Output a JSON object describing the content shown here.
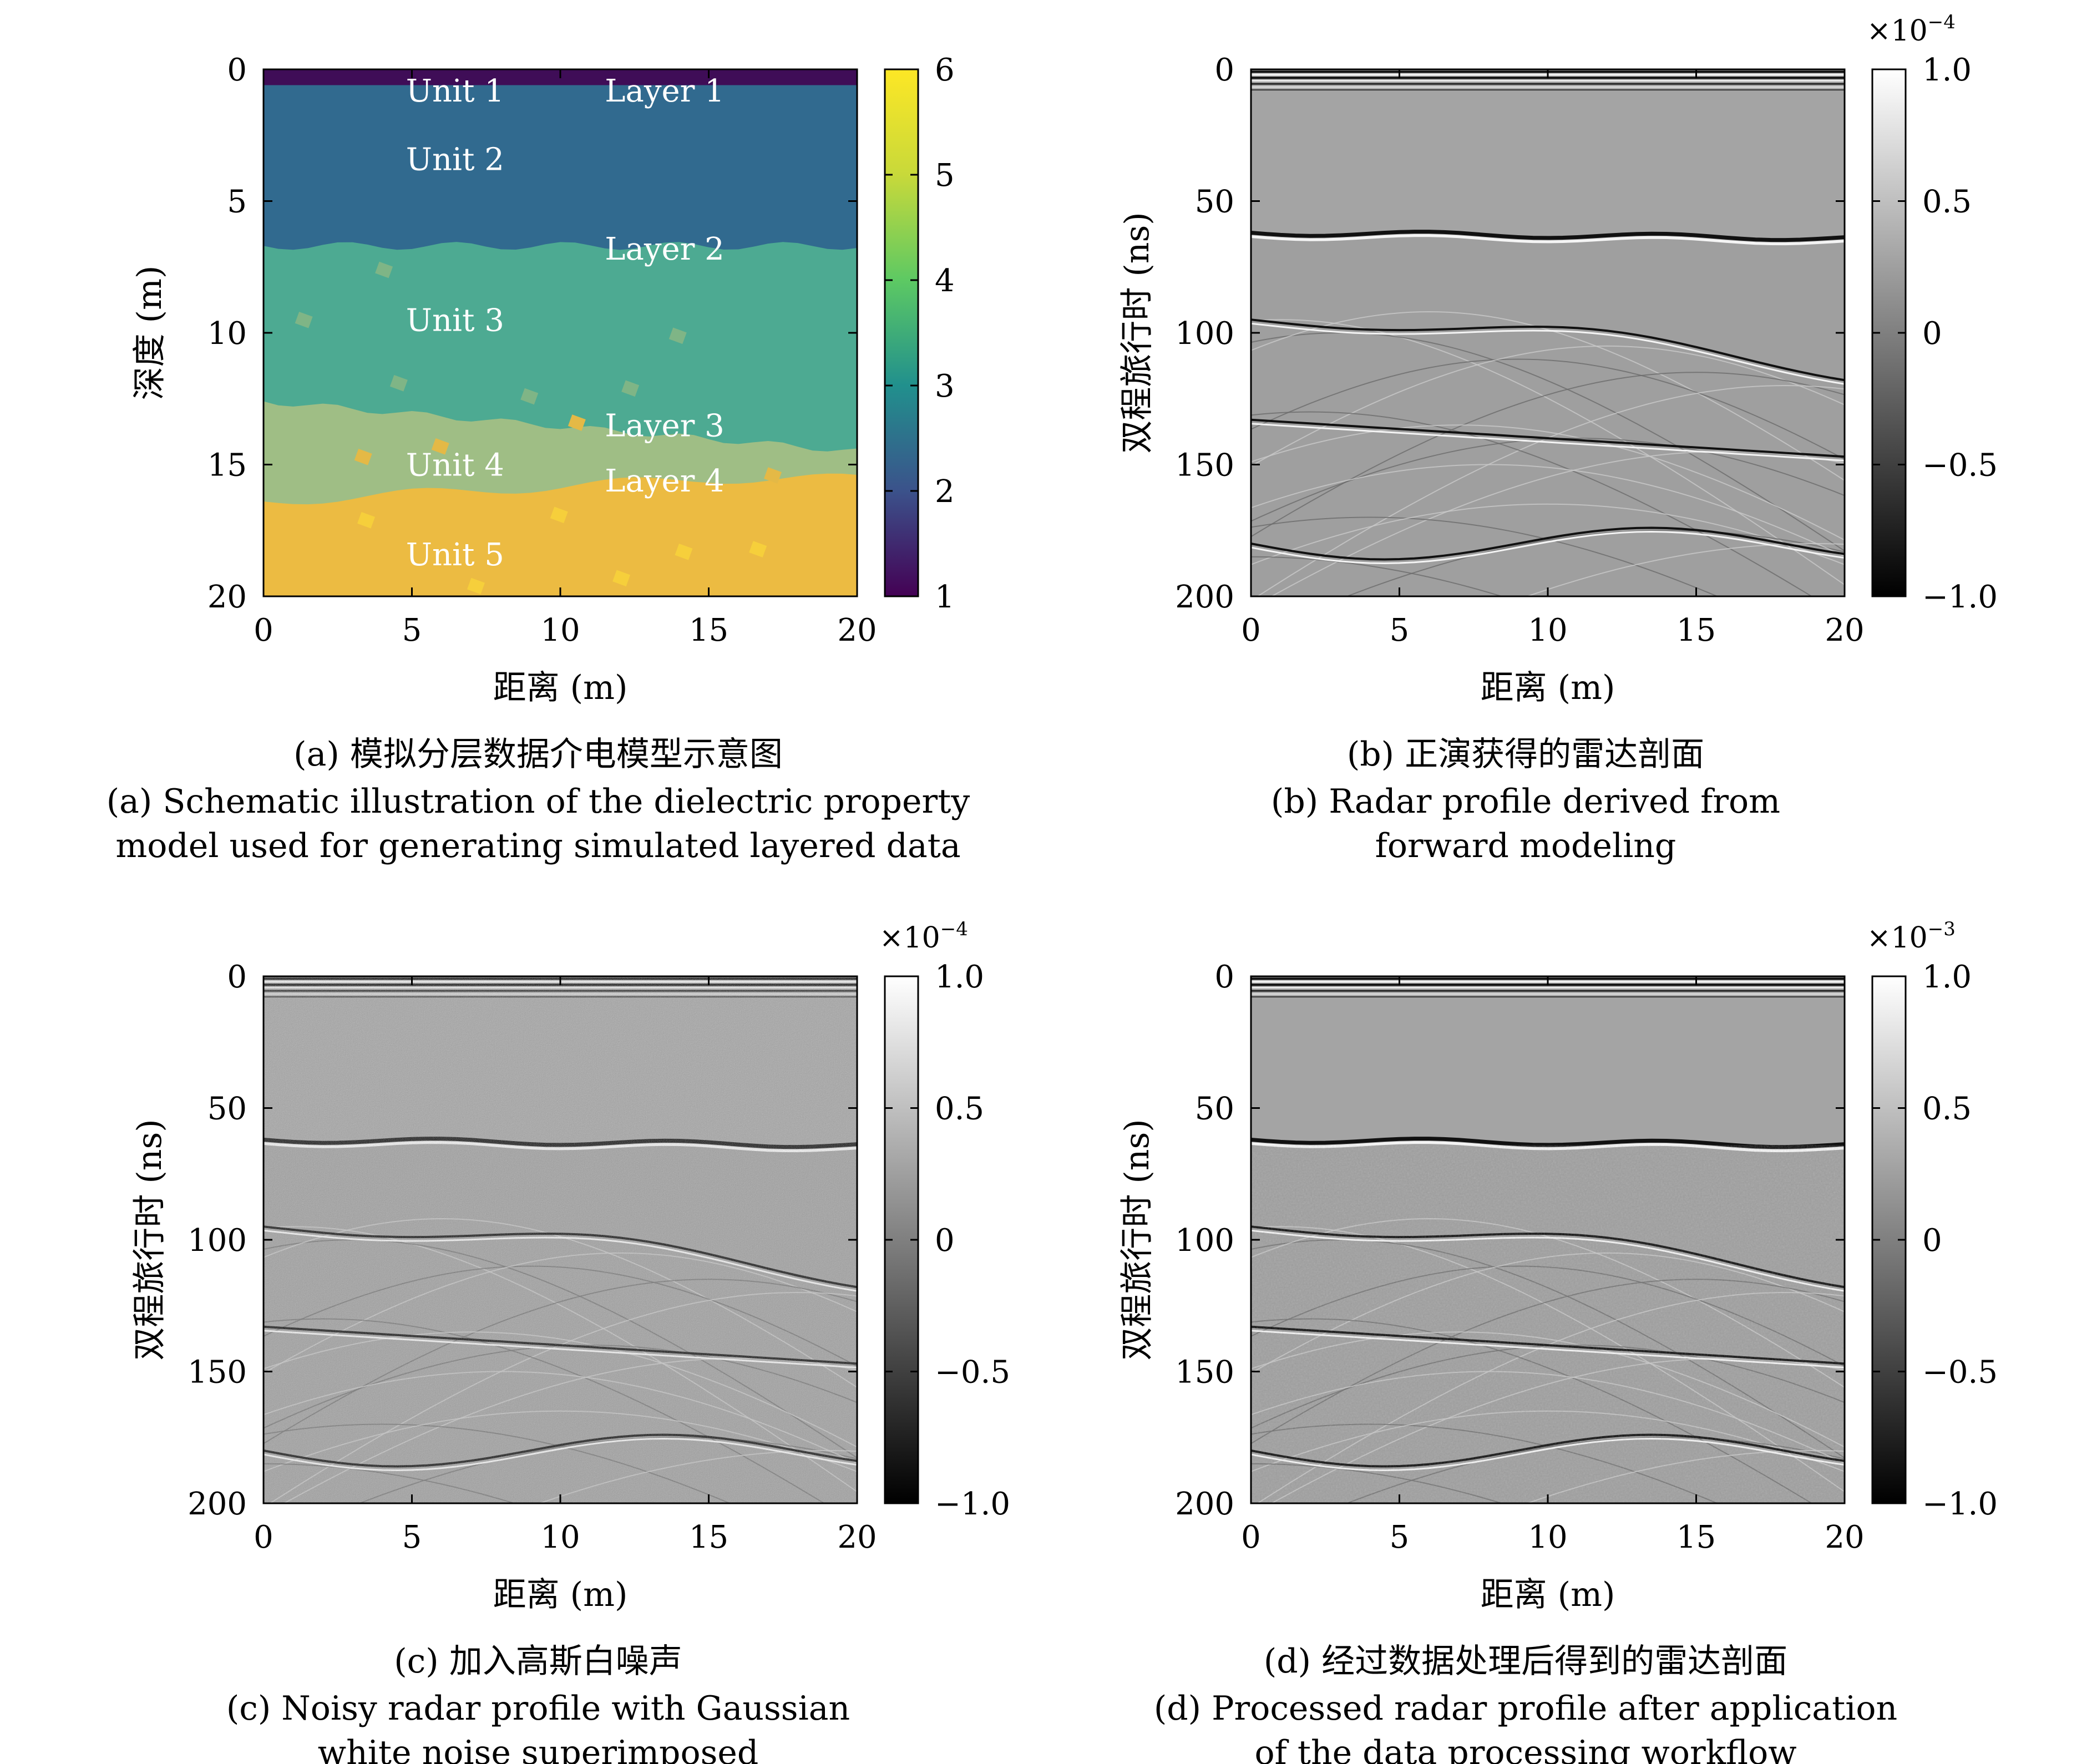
{
  "panels": [
    {
      "id": "a",
      "caption_cn": "(a) 模拟分层数据介电模型示意图",
      "caption_en": [
        "(a) Schematic illustration of the dielectric property",
        "model used for generating simulated layered data"
      ],
      "xlabel": "距离 (m)",
      "ylabel": "深度 (m)",
      "colorbar": {
        "ticks": [
          "1",
          "2",
          "3",
          "4",
          "5",
          "6"
        ],
        "scale": ""
      },
      "labels": [
        "Unit 1",
        "Layer 1",
        "Unit 2",
        "Layer 2",
        "Unit 3",
        "Layer 3",
        "Unit 4",
        "Layer 4",
        "Unit 5"
      ]
    },
    {
      "id": "b",
      "caption_cn": "(b) 正演获得的雷达剖面",
      "caption_en": [
        "(b) Radar profile derived from",
        "forward modeling"
      ],
      "xlabel": "距离 (m)",
      "ylabel": "双程旅行时 (ns)",
      "colorbar": {
        "ticks": [
          "1.0",
          "0.5",
          "0",
          "−0.5",
          "−1.0"
        ],
        "scale_base": "×10",
        "scale_exp": "−4"
      }
    },
    {
      "id": "c",
      "caption_cn": "(c) 加入高斯白噪声",
      "caption_en": [
        "(c) Noisy radar profile with Gaussian",
        "white noise superimposed"
      ],
      "xlabel": "距离 (m)",
      "ylabel": "双程旅行时 (ns)",
      "colorbar": {
        "ticks": [
          "1.0",
          "0.5",
          "0",
          "−0.5",
          "−1.0"
        ],
        "scale_base": "×10",
        "scale_exp": "−4"
      }
    },
    {
      "id": "d",
      "caption_cn": "(d) 经过数据处理后得到的雷达剖面",
      "caption_en": [
        "(d) Processed radar profile after application",
        "of the data processing workflow"
      ],
      "xlabel": "距离 (m)",
      "ylabel": "双程旅行时 (ns)",
      "colorbar": {
        "ticks": [
          "1.0",
          "0.5",
          "0",
          "−0.5",
          "−1.0"
        ],
        "scale_base": "×10",
        "scale_exp": "−3"
      }
    }
  ],
  "chart_data": [
    {
      "type": "heatmap",
      "x_ticks": [
        "0",
        "5",
        "10",
        "15",
        "20"
      ],
      "y_ticks": [
        "0",
        "5",
        "10",
        "15",
        "20"
      ],
      "xlim": [
        0,
        20
      ],
      "ylim": [
        20,
        0
      ],
      "colorbar_range": [
        1,
        6
      ],
      "layers": [
        {
          "name": "Unit 1",
          "value": 1.0,
          "top": 0,
          "bottom": 0.6
        },
        {
          "name": "Unit 2",
          "value": 2.0,
          "top": 0.6,
          "bottom": 6.8
        },
        {
          "name": "Unit 3",
          "value": 3.0,
          "top": 6.8,
          "bottom": 12.9
        },
        {
          "name": "Unit 4",
          "value": 4.3,
          "top": 12.9,
          "bottom": 16.5
        },
        {
          "name": "Unit 5",
          "value": 5.3,
          "top": 16.5,
          "bottom": 20
        }
      ]
    },
    {
      "type": "heatmap",
      "x_ticks": [
        "0",
        "5",
        "10",
        "15",
        "20"
      ],
      "y_ticks": [
        "0",
        "50",
        "100",
        "150",
        "200"
      ],
      "xlim": [
        0,
        20
      ],
      "ylim": [
        200,
        0
      ],
      "colorbar_range": [
        -1.0,
        1.0
      ],
      "reflectors_ns": [
        62,
        95,
        133,
        180
      ]
    },
    {
      "type": "heatmap",
      "x_ticks": [
        "0",
        "5",
        "10",
        "15",
        "20"
      ],
      "y_ticks": [
        "0",
        "50",
        "100",
        "150",
        "200"
      ],
      "xlim": [
        0,
        20
      ],
      "ylim": [
        200,
        0
      ],
      "colorbar_range": [
        -1.0,
        1.0
      ],
      "reflectors_ns": [
        62,
        95,
        133,
        180
      ]
    },
    {
      "type": "heatmap",
      "x_ticks": [
        "0",
        "5",
        "10",
        "15",
        "20"
      ],
      "y_ticks": [
        "0",
        "50",
        "100",
        "150",
        "200"
      ],
      "xlim": [
        0,
        20
      ],
      "ylim": [
        200,
        0
      ],
      "colorbar_range": [
        -1.0,
        1.0
      ],
      "reflectors_ns": [
        62,
        95,
        133,
        180
      ]
    }
  ]
}
